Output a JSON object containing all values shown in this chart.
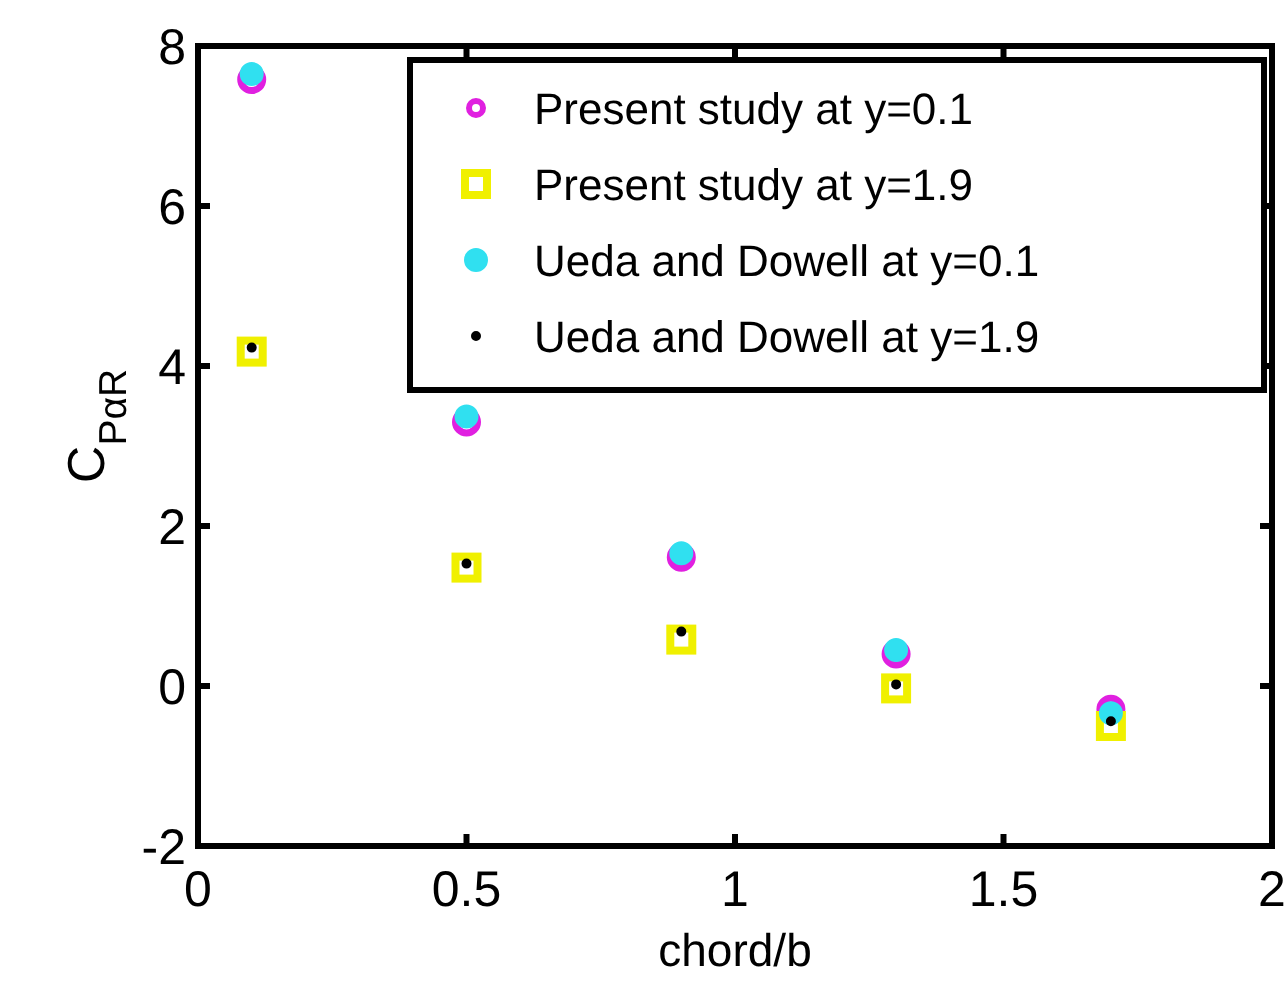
{
  "chart_data": {
    "type": "scatter",
    "xlabel": "chord/b",
    "ylabel": "C$_{PαR}$",
    "x": [
      0.1,
      0.5,
      0.9,
      1.3,
      1.7
    ],
    "series": [
      {
        "name": "Present study at y=0.1",
        "color": "#e020e0",
        "marker": "circle",
        "values": [
          7.58,
          3.3,
          1.61,
          0.4,
          -0.29
        ]
      },
      {
        "name": "Present study at y=1.9",
        "color": "#f0f000",
        "marker": "square",
        "values": [
          4.18,
          1.48,
          0.58,
          -0.03,
          -0.5
        ]
      },
      {
        "name": "Ueda and Dowell at y=0.1",
        "color": "#30e0f0",
        "marker": "circle",
        "values": [
          7.65,
          3.37,
          1.66,
          0.45,
          -0.34
        ]
      },
      {
        "name": "Ueda and Dowell at y=1.9",
        "color": "#000000",
        "marker": "circle",
        "values": [
          4.23,
          1.53,
          0.68,
          0.02,
          -0.44
        ]
      }
    ],
    "xlim": [
      0,
      2
    ],
    "xticks": [
      0,
      0.5,
      1,
      1.5,
      2
    ],
    "ylim": [
      -2,
      8
    ],
    "yticks": [
      -2,
      0,
      2,
      4,
      6,
      8
    ],
    "grid": false,
    "legend": "top right"
  }
}
